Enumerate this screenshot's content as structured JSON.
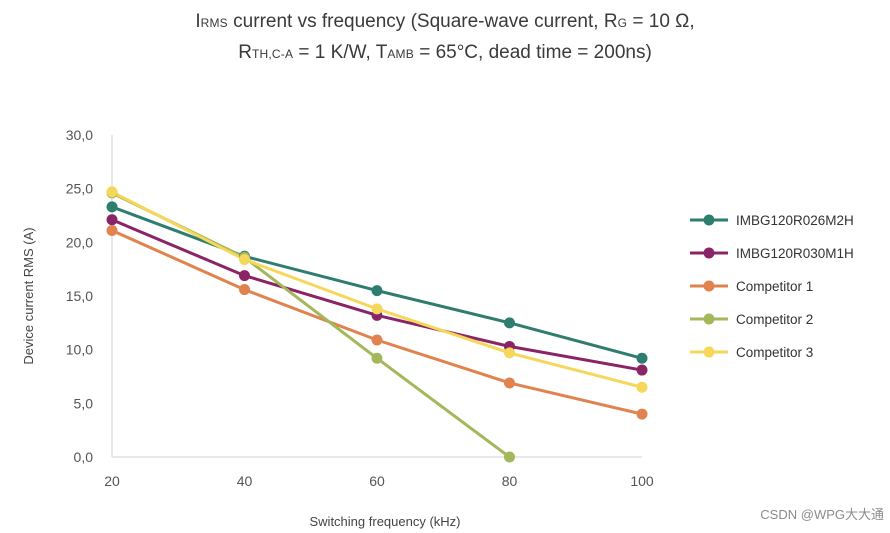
{
  "title": {
    "line1": {
      "p1": "I",
      "p2": "RMS",
      "p3": " current vs frequency (Square-wave current, R",
      "p4": "G",
      "p5": " = 10 Ω,"
    },
    "line2": {
      "p1": "R",
      "p2": "TH,C-A",
      "p3": " = 1 K/W, T",
      "p4": "AMB",
      "p5": " = 65°C, dead time = 200ns)"
    }
  },
  "watermark": "CSDN @WPG大大通",
  "chart_data": {
    "type": "line",
    "title": "IRMS current vs frequency (Square-wave current, RG = 10 Ω, RTH,C-A = 1 K/W, TAMB = 65°C, dead time = 200ns)",
    "xlabel": "Switching frequency (kHz)",
    "ylabel": "Device current RMS (A)",
    "x_ticks": [
      20,
      40,
      60,
      80,
      100
    ],
    "x_tick_labels": [
      "20",
      "40",
      "60",
      "80",
      "100"
    ],
    "y_ticks": [
      0,
      5,
      10,
      15,
      20,
      25,
      30
    ],
    "y_tick_labels": [
      "0,0",
      "5,0",
      "10,0",
      "15,0",
      "20,0",
      "25,0",
      "30,0"
    ],
    "xlim": [
      20,
      100
    ],
    "ylim": [
      0,
      30
    ],
    "grid": false,
    "legend_position": "right",
    "series": [
      {
        "name": "IMBG120R026M2H",
        "color": "#2e7d6f",
        "x": [
          20,
          40,
          60,
          80,
          100
        ],
        "values": [
          23.3,
          18.7,
          15.5,
          12.5,
          9.2
        ]
      },
      {
        "name": "IMBG120R030M1H",
        "color": "#8b2466",
        "x": [
          20,
          40,
          60,
          80,
          100
        ],
        "values": [
          22.1,
          16.9,
          13.2,
          10.3,
          8.1
        ]
      },
      {
        "name": "Competitor 1",
        "color": "#e0834f",
        "x": [
          20,
          40,
          60,
          80,
          100
        ],
        "values": [
          21.1,
          15.6,
          10.9,
          6.9,
          4.0
        ]
      },
      {
        "name": "Competitor 2",
        "color": "#a2b85a",
        "x": [
          20,
          40,
          60,
          80
        ],
        "values": [
          24.6,
          18.6,
          9.2,
          0.0
        ]
      },
      {
        "name": "Competitor 3",
        "color": "#f5d75a",
        "x": [
          20,
          40,
          60,
          80,
          100
        ],
        "values": [
          24.7,
          18.4,
          13.8,
          9.7,
          6.5
        ]
      }
    ]
  }
}
